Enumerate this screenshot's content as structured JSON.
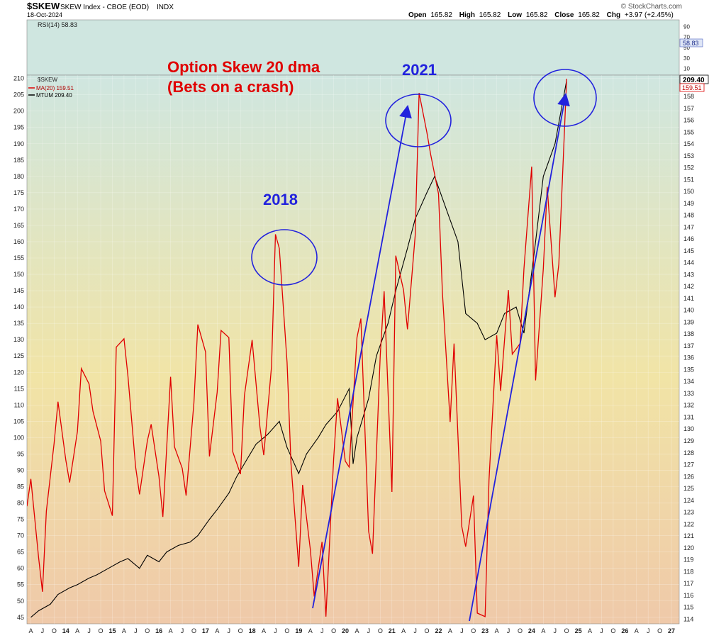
{
  "header": {
    "symbol": "$SKEW",
    "name": "SKEW Index - CBOE (EOD)",
    "exchange": "INDX",
    "date": "18-Oct-2024",
    "watermark": "© StockCharts.com",
    "quote": [
      {
        "label": "Open",
        "value": "165.82"
      },
      {
        "label": "High",
        "value": "165.82"
      },
      {
        "label": "Low",
        "value": "165.82"
      },
      {
        "label": "Close",
        "value": "165.82"
      },
      {
        "label": "Chg",
        "value": "+3.97 (+2.45%)"
      }
    ]
  },
  "rsi_panel": {
    "label": "RSI(14) 58.83",
    "value_tag": "58.83",
    "ticks": [
      "90",
      "70",
      "50",
      "30",
      "10"
    ]
  },
  "legend": {
    "symbol": "$SKEW",
    "ma": "MA(20) 159.51",
    "mtum": "MTUM 209.40"
  },
  "price_tags": {
    "right_top": "209.40",
    "right_bottom": "159.51"
  },
  "annotations": {
    "title_line1": "Option Skew 20 dma",
    "title_line2": "(Bets on a crash)",
    "label_2018": "2018",
    "label_2021": "2021"
  },
  "colors": {
    "ma_line": "#e00000",
    "mtum_line": "#000000",
    "annotation_blue": "#2222dd",
    "annotation_red": "#e00000",
    "bg_top": "#cfe6e0",
    "bg_mid": "#f1e4a6",
    "bg_bottom": "#efc9a9"
  },
  "chart_data": {
    "type": "line",
    "left_axis": {
      "ticks": [
        210,
        205,
        200,
        195,
        190,
        185,
        180,
        175,
        170,
        165,
        160,
        155,
        150,
        145,
        140,
        135,
        130,
        125,
        120,
        115,
        110,
        105,
        100,
        95,
        90,
        85,
        80,
        75,
        70,
        65,
        60,
        55,
        50,
        45
      ],
      "ylim": [
        43,
        211
      ]
    },
    "right_axis": {
      "ticks": [
        159,
        158,
        157,
        156,
        155,
        154,
        153,
        152,
        151,
        150,
        149,
        148,
        147,
        146,
        145,
        144,
        143,
        142,
        141,
        140,
        139,
        138,
        137,
        136,
        135,
        134,
        133,
        132,
        131,
        130,
        129,
        128,
        127,
        126,
        125,
        124,
        123,
        122,
        121,
        120,
        119,
        118,
        117,
        116,
        115,
        114
      ],
      "ylim": [
        113.6,
        159.8
      ]
    },
    "x_tick_labels": [
      "A",
      "J",
      "O",
      "14",
      "A",
      "J",
      "O",
      "15",
      "A",
      "J",
      "O",
      "16",
      "A",
      "J",
      "O",
      "17",
      "A",
      "J",
      "O",
      "18",
      "A",
      "J",
      "O",
      "19",
      "A",
      "J",
      "O",
      "20",
      "A",
      "J",
      "O",
      "21",
      "A",
      "J",
      "O",
      "22",
      "A",
      "J",
      "O",
      "23",
      "A",
      "J",
      "O",
      "24",
      "A",
      "J",
      "O",
      "25",
      "A",
      "J",
      "O",
      "26",
      "A",
      "J",
      "O",
      "27"
    ],
    "x_range": [
      "2013-03",
      "2027-03"
    ],
    "series": [
      {
        "name": "MA(20) 159.51",
        "axis": "right",
        "x": [
          "2013-03",
          "2013-04",
          "2013-06",
          "2013-07",
          "2013-08",
          "2013-10",
          "2013-11",
          "2014-01",
          "2014-02",
          "2014-04",
          "2014-05",
          "2014-07",
          "2014-08",
          "2014-10",
          "2014-11",
          "2015-01",
          "2015-02",
          "2015-04",
          "2015-05",
          "2015-07",
          "2015-08",
          "2015-10",
          "2015-11",
          "2016-01",
          "2016-02",
          "2016-04",
          "2016-05",
          "2016-07",
          "2016-08",
          "2016-10",
          "2016-11",
          "2017-01",
          "2017-02",
          "2017-04",
          "2017-05",
          "2017-07",
          "2017-08",
          "2017-10",
          "2017-11",
          "2018-01",
          "2018-03",
          "2018-04",
          "2018-06",
          "2018-07",
          "2018-08",
          "2018-10",
          "2018-11",
          "2019-01",
          "2019-02",
          "2019-04",
          "2019-05",
          "2019-07",
          "2019-08",
          "2019-10",
          "2019-11",
          "2020-01",
          "2020-02",
          "2020-04",
          "2020-05",
          "2020-07",
          "2020-08",
          "2020-10",
          "2020-11",
          "2021-01",
          "2021-02",
          "2021-04",
          "2021-05",
          "2021-07",
          "2021-08",
          "2021-10",
          "2021-11",
          "2022-01",
          "2022-02",
          "2022-04",
          "2022-05",
          "2022-07",
          "2022-08",
          "2022-10",
          "2022-11",
          "2023-01",
          "2023-02",
          "2023-04",
          "2023-05",
          "2023-07",
          "2023-08",
          "2023-10",
          "2023-11",
          "2024-01",
          "2024-02",
          "2024-04",
          "2024-05",
          "2024-07",
          "2024-08",
          "2024-10"
        ],
        "y": [
          123.5,
          125.8,
          119.2,
          116.3,
          123.1,
          128.8,
          132.3,
          127.4,
          125.5,
          129.8,
          135.1,
          133.8,
          131.5,
          129.0,
          124.8,
          122.7,
          136.9,
          137.6,
          134.5,
          126.8,
          124.5,
          129.0,
          130.4,
          126.0,
          122.6,
          134.4,
          128.5,
          126.7,
          124.4,
          132.2,
          138.8,
          136.5,
          127.7,
          133.1,
          138.3,
          137.7,
          128.1,
          126.2,
          132.8,
          137.5,
          130.2,
          127.8,
          135.3,
          146.4,
          145.2,
          135.6,
          127.1,
          118.4,
          125.3,
          119.8,
          115.9,
          120.5,
          114.2,
          127.5,
          132.6,
          127.3,
          126.8,
          137.7,
          139.3,
          121.4,
          119.5,
          136.2,
          141.6,
          124.7,
          144.6,
          141.7,
          138.4,
          146.3,
          158.3,
          155.0,
          153.1,
          149.8,
          141.5,
          130.6,
          137.2,
          121.8,
          120.1,
          124.4,
          114.5,
          114.2,
          125.7,
          137.9,
          133.2,
          141.7,
          136.3,
          137.2,
          143.5,
          152.1,
          134.1,
          143.5,
          150.4,
          141.1,
          143.9,
          159.5
        ]
      },
      {
        "name": "MTUM 209.40",
        "axis": "left",
        "x": [
          "2013-04",
          "2013-06",
          "2013-09",
          "2013-11",
          "2014-02",
          "2014-04",
          "2014-07",
          "2014-09",
          "2014-12",
          "2015-03",
          "2015-05",
          "2015-08",
          "2015-10",
          "2016-01",
          "2016-03",
          "2016-06",
          "2016-09",
          "2016-11",
          "2017-02",
          "2017-04",
          "2017-07",
          "2017-09",
          "2017-12",
          "2018-02",
          "2018-05",
          "2018-08",
          "2018-10",
          "2019-01",
          "2019-03",
          "2019-06",
          "2019-08",
          "2019-11",
          "2020-02",
          "2020-03",
          "2020-04",
          "2020-07",
          "2020-09",
          "2020-12",
          "2021-02",
          "2021-05",
          "2021-07",
          "2021-10",
          "2021-12",
          "2022-03",
          "2022-06",
          "2022-08",
          "2022-11",
          "2023-01",
          "2023-04",
          "2023-06",
          "2023-09",
          "2023-11",
          "2024-02",
          "2024-04",
          "2024-07",
          "2024-10"
        ],
        "y": [
          45,
          47,
          49,
          52,
          54,
          55,
          57,
          58,
          60,
          62,
          63,
          60,
          64,
          62,
          65,
          67,
          68,
          70,
          75,
          78,
          83,
          88,
          94,
          98,
          101,
          105,
          97,
          89,
          95,
          100,
          104,
          108,
          115,
          92,
          100,
          112,
          125,
          135,
          145,
          158,
          167,
          175,
          180,
          170,
          160,
          138,
          135,
          130,
          132,
          138,
          140,
          132,
          160,
          180,
          190,
          209.4
        ]
      }
    ]
  }
}
